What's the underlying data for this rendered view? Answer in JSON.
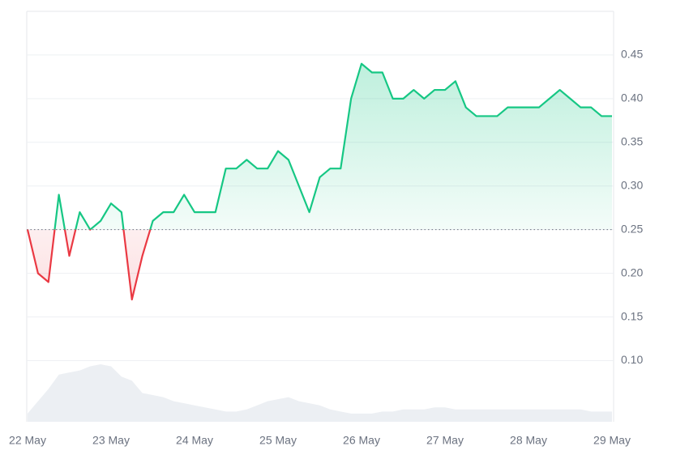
{
  "chart_data": {
    "type": "line",
    "categories": [
      "22 May",
      null,
      null,
      null,
      null,
      null,
      null,
      null,
      "23 May",
      null,
      null,
      null,
      null,
      null,
      null,
      null,
      "24 May",
      null,
      null,
      null,
      null,
      null,
      null,
      null,
      "25 May",
      null,
      null,
      null,
      null,
      null,
      null,
      null,
      "26 May",
      null,
      null,
      null,
      null,
      null,
      null,
      null,
      "27 May",
      null,
      null,
      null,
      null,
      null,
      null,
      null,
      "28 May",
      null,
      null,
      null,
      null,
      null,
      null,
      null,
      "29 May"
    ],
    "series": [
      {
        "color": "#16c784",
        "down_color": "#ea3943",
        "values": [
          0.25,
          0.2,
          0.19,
          0.29,
          0.22,
          0.27,
          0.25,
          0.26,
          0.28,
          0.27,
          0.17,
          0.22,
          0.26,
          0.27,
          0.27,
          0.29,
          0.27,
          0.27,
          0.27,
          0.32,
          0.32,
          0.33,
          0.32,
          0.32,
          0.34,
          0.33,
          0.3,
          0.27,
          0.31,
          0.32,
          0.32,
          0.4,
          0.44,
          0.43,
          0.43,
          0.4,
          0.4,
          0.41,
          0.4,
          0.41,
          0.41,
          0.42,
          0.39,
          0.38,
          0.38,
          0.38,
          0.39,
          0.39,
          0.39,
          0.39,
          0.4,
          0.41,
          0.4,
          0.39,
          0.39,
          0.38,
          0.38
        ]
      },
      {
        "color": "#eceff3",
        "axis": "y2",
        "values": [
          2,
          5,
          8,
          11.5,
          12,
          12.5,
          13.5,
          14,
          13.5,
          11,
          10,
          7,
          6.5,
          6,
          5,
          4.5,
          4,
          3.5,
          3,
          2.5,
          2.5,
          3,
          4,
          5,
          5.5,
          6,
          5,
          4.5,
          4,
          3,
          2.5,
          2,
          2,
          2,
          2.5,
          2.5,
          3,
          3,
          3,
          3.5,
          3.5,
          3,
          3,
          3,
          3,
          3,
          3,
          3,
          3,
          3,
          3,
          3,
          3,
          3,
          2.5,
          2.5,
          2.5
        ]
      }
    ],
    "baseline": 0.25,
    "ylim": [
      0.03,
      0.5
    ],
    "yticks": [
      {
        "value": 0.1,
        "label": "0.10"
      },
      0.15,
      {
        "value": 0.2,
        "label": "0.20"
      },
      0.25,
      {
        "value": 0.3,
        "label": "0.30"
      },
      0.35,
      {
        "value": 0.4,
        "label": "0.40"
      },
      0.45
    ],
    "y2lim": [
      0,
      100
    ],
    "grid": true
  }
}
